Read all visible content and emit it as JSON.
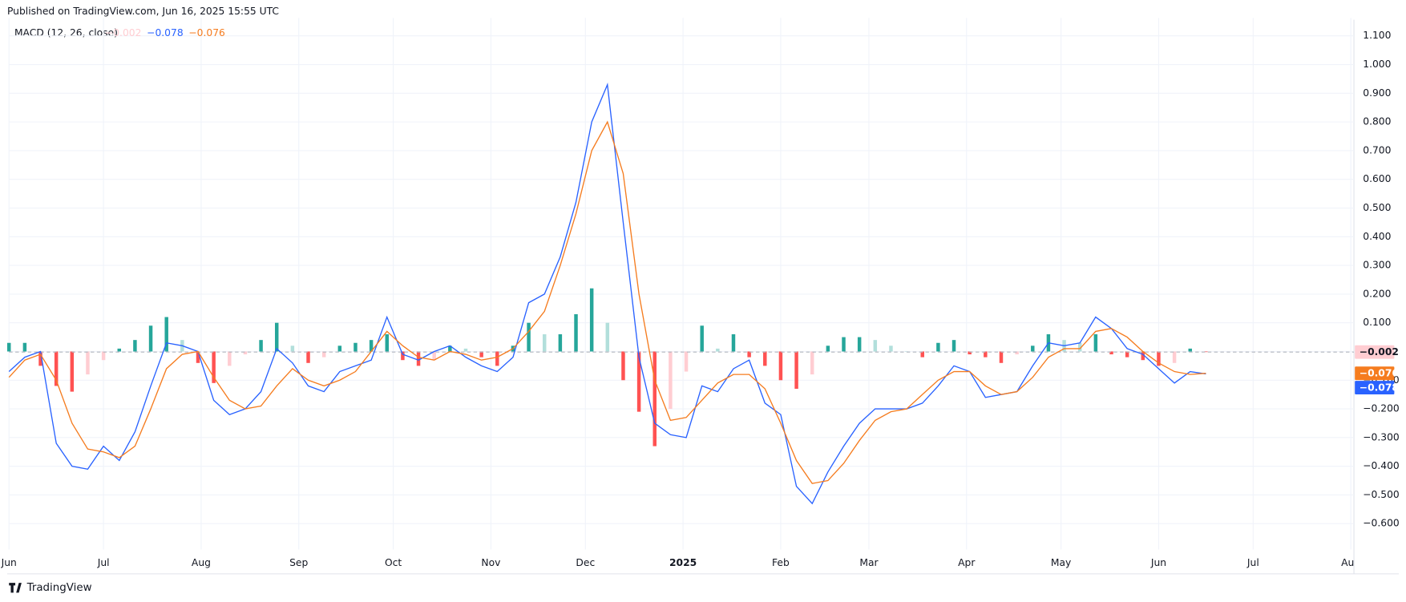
{
  "header": "Published on TradingView.com, Jun 16, 2025 15:55 UTC",
  "footer": "TradingView",
  "chart_data": {
    "type": "macd",
    "title": "MACD (12, 26, close)",
    "x": [
      0,
      5,
      10,
      15,
      20,
      25,
      30,
      35,
      40,
      45,
      50,
      55,
      60,
      65,
      70,
      75,
      80,
      85,
      90,
      95,
      100,
      105,
      110,
      115,
      120,
      125,
      130,
      135,
      140,
      145,
      150,
      155,
      160,
      165,
      170,
      175,
      180,
      185,
      190,
      195,
      200,
      205,
      210,
      215,
      220,
      225,
      230,
      235,
      240,
      245,
      250,
      255,
      260,
      265,
      270,
      275,
      280,
      285,
      290,
      295,
      300,
      305,
      310,
      315,
      320,
      325,
      330,
      335,
      340,
      345,
      350,
      355,
      360,
      365,
      370,
      375,
      380
    ],
    "series": [
      {
        "kind": "histogram",
        "colors": [
          "#26a69a",
          "#b2dfdb",
          "#ffcdd2",
          "#ff5252"
        ],
        "last_label": "−0.002",
        "values": [
          0.03,
          0.03,
          -0.05,
          -0.12,
          -0.14,
          -0.08,
          -0.03,
          0.01,
          0.04,
          0.09,
          0.12,
          0.04,
          -0.04,
          -0.11,
          -0.05,
          -0.01,
          0.04,
          0.1,
          0.02,
          -0.04,
          -0.02,
          0.02,
          0.03,
          0.04,
          0.06,
          -0.03,
          -0.05,
          -0.03,
          0.02,
          0.01,
          -0.02,
          -0.05,
          0.02,
          0.1,
          0.06,
          0.06,
          0.13,
          0.22,
          0.1,
          -0.1,
          -0.21,
          -0.33,
          -0.2,
          -0.07,
          0.09,
          0.01,
          0.06,
          -0.02,
          -0.05,
          -0.1,
          -0.13,
          -0.08,
          0.02,
          0.05,
          0.05,
          0.04,
          0.02,
          0,
          -0.02,
          0.03,
          0.04,
          -0.01,
          -0.02,
          -0.04,
          -0.01,
          0.02,
          0.06,
          0.04,
          0.03,
          0.06,
          -0.01,
          -0.02,
          -0.03,
          -0.05,
          -0.04,
          0.01,
          -0.002
        ]
      },
      {
        "kind": "line",
        "color": "#2962ff",
        "last_label": "−0.078",
        "values": [
          -0.07,
          -0.02,
          0.0,
          -0.32,
          -0.4,
          -0.41,
          -0.33,
          -0.38,
          -0.28,
          -0.12,
          0.03,
          0.02,
          0.0,
          -0.17,
          -0.22,
          -0.2,
          -0.14,
          0.01,
          -0.04,
          -0.12,
          -0.14,
          -0.07,
          -0.05,
          -0.03,
          0.12,
          -0.01,
          -0.03,
          0.0,
          0.02,
          -0.02,
          -0.05,
          -0.07,
          -0.02,
          0.17,
          0.2,
          0.33,
          0.52,
          0.8,
          0.93,
          0.45,
          -0.02,
          -0.25,
          -0.29,
          -0.3,
          -0.12,
          -0.14,
          -0.06,
          -0.03,
          -0.18,
          -0.22,
          -0.47,
          -0.53,
          -0.42,
          -0.33,
          -0.25,
          -0.2,
          -0.2,
          -0.2,
          -0.18,
          -0.12,
          -0.05,
          -0.07,
          -0.16,
          -0.15,
          -0.14,
          -0.05,
          0.03,
          0.02,
          0.03,
          0.12,
          0.08,
          0.01,
          -0.01,
          -0.06,
          -0.11,
          -0.07,
          -0.078
        ]
      },
      {
        "kind": "line",
        "color": "#f57c1f",
        "last_label": "−0.076",
        "values": [
          -0.09,
          -0.03,
          -0.01,
          -0.1,
          -0.25,
          -0.34,
          -0.35,
          -0.37,
          -0.33,
          -0.2,
          -0.06,
          -0.01,
          0.0,
          -0.09,
          -0.17,
          -0.2,
          -0.19,
          -0.12,
          -0.06,
          -0.1,
          -0.12,
          -0.1,
          -0.07,
          0.0,
          0.07,
          0.02,
          -0.02,
          -0.03,
          0.0,
          -0.01,
          -0.03,
          -0.02,
          0.01,
          0.07,
          0.14,
          0.3,
          0.48,
          0.7,
          0.8,
          0.62,
          0.2,
          -0.1,
          -0.24,
          -0.23,
          -0.17,
          -0.11,
          -0.08,
          -0.08,
          -0.13,
          -0.25,
          -0.38,
          -0.46,
          -0.45,
          -0.39,
          -0.31,
          -0.24,
          -0.21,
          -0.2,
          -0.15,
          -0.1,
          -0.07,
          -0.07,
          -0.12,
          -0.15,
          -0.14,
          -0.09,
          -0.02,
          0.01,
          0.01,
          0.07,
          0.08,
          0.05,
          0.0,
          -0.04,
          -0.07,
          -0.08,
          -0.076
        ]
      }
    ],
    "xlim": [
      0,
      427
    ],
    "xticks": [
      {
        "value": 0,
        "label": "Jun"
      },
      {
        "value": 30,
        "label": "Jul"
      },
      {
        "value": 61,
        "label": "Aug"
      },
      {
        "value": 92,
        "label": "Sep"
      },
      {
        "value": 122,
        "label": "Oct"
      },
      {
        "value": 153,
        "label": "Nov"
      },
      {
        "value": 183,
        "label": "Dec"
      },
      {
        "value": 214,
        "label": "2025"
      },
      {
        "value": 245,
        "label": "Feb"
      },
      {
        "value": 273,
        "label": "Mar"
      },
      {
        "value": 304,
        "label": "Apr"
      },
      {
        "value": 334,
        "label": "May"
      },
      {
        "value": 365,
        "label": "Jun"
      },
      {
        "value": 395,
        "label": "Jul"
      },
      {
        "value": 426,
        "label": "Aug"
      }
    ],
    "ylim": [
      -0.69,
      1.15
    ],
    "yticks": [
      {
        "value": 1.1,
        "label": "1.100"
      },
      {
        "value": 1.0,
        "label": "1.000"
      },
      {
        "value": 0.9,
        "label": "0.900"
      },
      {
        "value": 0.8,
        "label": "0.800"
      },
      {
        "value": 0.7,
        "label": "0.700"
      },
      {
        "value": 0.6,
        "label": "0.600"
      },
      {
        "value": 0.5,
        "label": "0.500"
      },
      {
        "value": 0.4,
        "label": "0.400"
      },
      {
        "value": 0.3,
        "label": "0.300"
      },
      {
        "value": 0.2,
        "label": "0.200"
      },
      {
        "value": 0.1,
        "label": "0.100"
      },
      {
        "value": 0,
        "label": "0.000"
      },
      {
        "value": -0.1,
        "label": "−0.100"
      },
      {
        "value": -0.2,
        "label": "−0.200"
      },
      {
        "value": -0.3,
        "label": "−0.300"
      },
      {
        "value": -0.4,
        "label": "−0.400"
      },
      {
        "value": -0.5,
        "label": "−0.500"
      },
      {
        "value": -0.6,
        "label": "−0.600"
      }
    ],
    "grid": true
  }
}
